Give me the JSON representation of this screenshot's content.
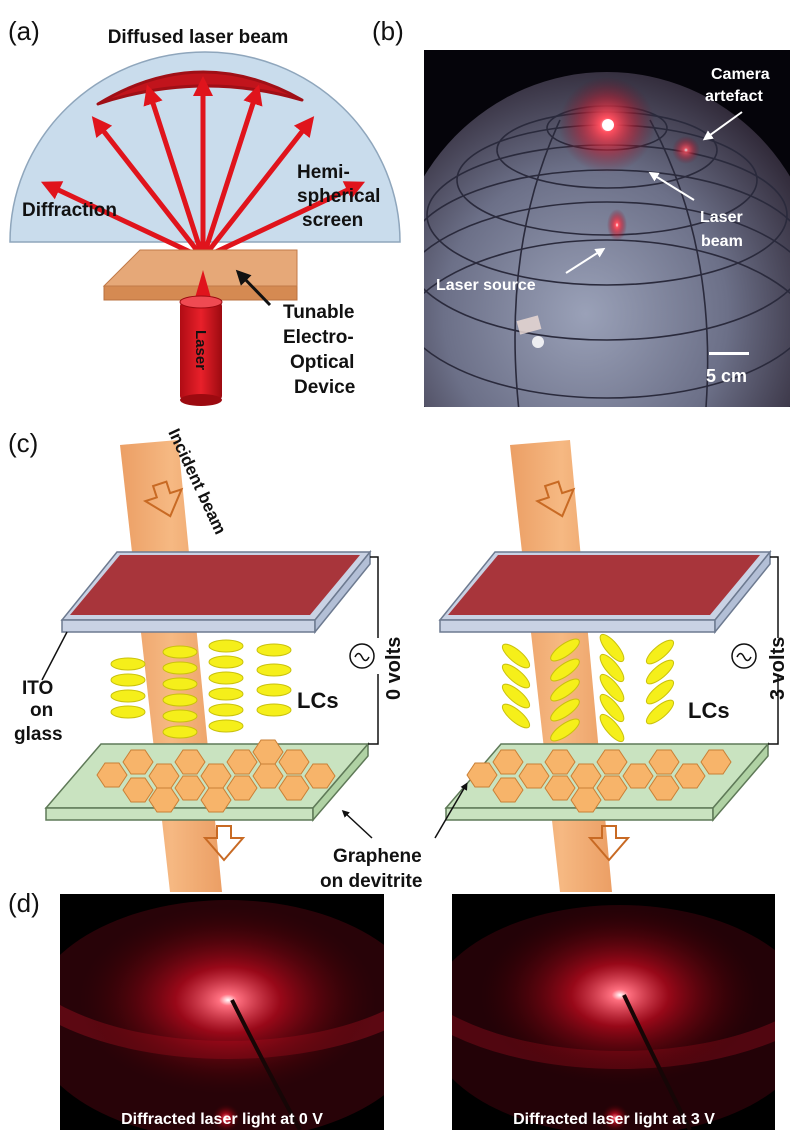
{
  "panel_a": {
    "letter": "(a)",
    "title": "Diffused laser beam",
    "diffraction": "Diffraction",
    "screen_line1": "Hemi-",
    "screen_line2": "spherical",
    "screen_line3": "screen",
    "device_line1": "Tunable",
    "device_line2": "Electro-",
    "device_line3": "Optical",
    "device_line4": "Device",
    "laser": "Laser"
  },
  "panel_b": {
    "letter": "(b)",
    "camera_line1": "Camera",
    "camera_line2": "artefact",
    "beam_line1": "Laser",
    "beam_line2": "beam",
    "source": "Laser source",
    "scale": "5 cm"
  },
  "panel_c": {
    "letter": "(c)",
    "incident": "Incident beam",
    "ito_line1": "ITO",
    "ito_line2": "on",
    "ito_line3": "glass",
    "lcs_left": "LCs",
    "lcs_right": "LCs",
    "volts_left": "0 volts",
    "volts_right": "3 volts",
    "graphene_line1": "Graphene",
    "graphene_line2": "on devitrite"
  },
  "panel_d": {
    "letter": "(d)",
    "caption_left": "Diffracted laser light at 0  V",
    "caption_right": "Diffracted laser light at 3 V"
  },
  "colors": {
    "laser_red": "#d9141b",
    "screen_blue": "#c9dcec",
    "device_tan": "#e6a878",
    "lc_yellow": "#f5ef1a",
    "hex_orange": "#f7b46a",
    "beam_orange": "#e98a3c",
    "ito_red": "#a8353b",
    "glass_green": "#c9e3c0"
  }
}
